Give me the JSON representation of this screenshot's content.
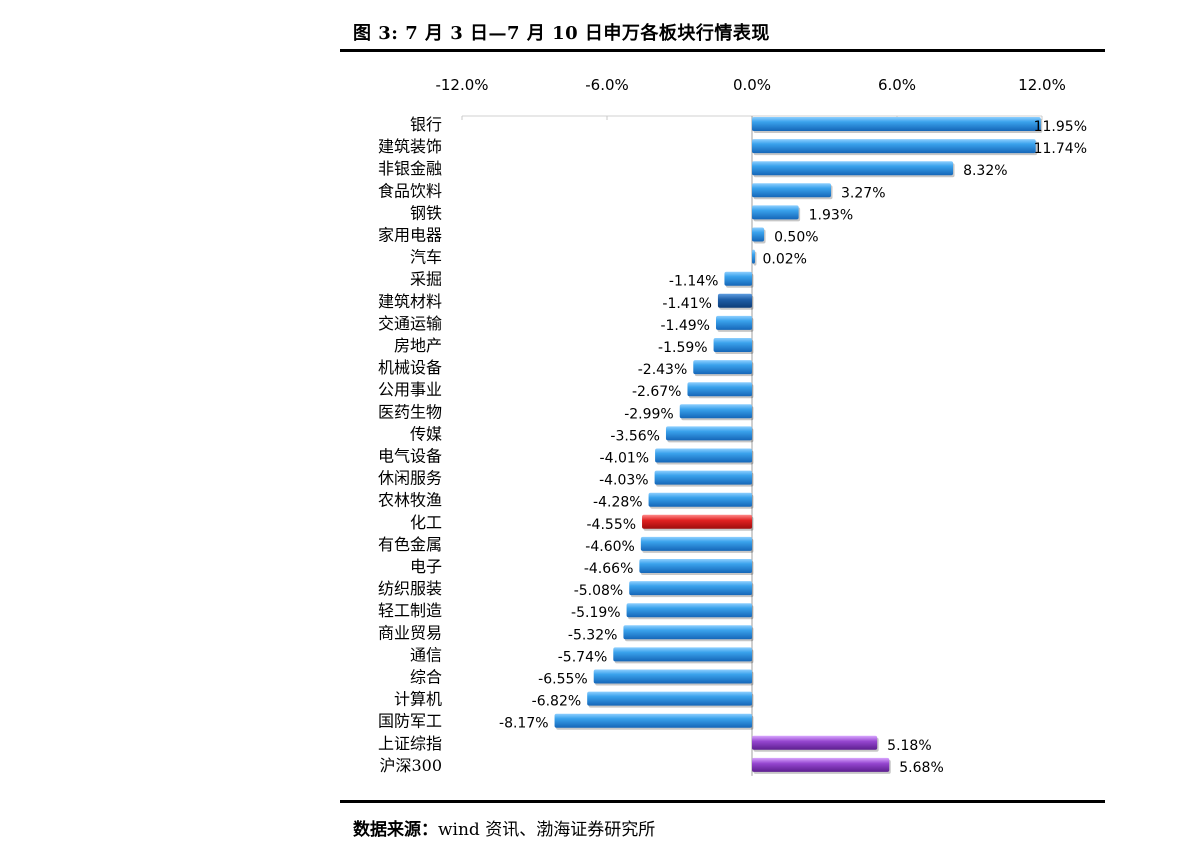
{
  "figure": {
    "title": "图 3:  7 月 3 日—7 月 10 日申万各板块行情表现",
    "source_label": "数据来源：",
    "source_text": "wind 资讯、渤海证券研究所"
  },
  "colors": {
    "default_bar": "#2a8fd6",
    "highlight_bar": "#d81e1e",
    "index_bar": "#8e3fc4",
    "dark_bar": "#1f5fa8"
  },
  "chart_data": {
    "type": "bar",
    "orientation": "horizontal",
    "title": "图 3:  7 月 3 日—7 月 10 日申万各板块行情表现",
    "xlabel": "",
    "ylabel": "",
    "xlim": [
      -12.0,
      12.0
    ],
    "xticks": [
      -12.0,
      -6.0,
      0.0,
      6.0,
      12.0
    ],
    "xtick_labels": [
      "-12.0%",
      "-6.0%",
      "0.0%",
      "6.0%",
      "12.0%"
    ],
    "axis_position": "top",
    "grid": false,
    "legend": "none",
    "categories": [
      "银行",
      "建筑装饰",
      "非银金融",
      "食品饮料",
      "钢铁",
      "家用电器",
      "汽车",
      "采掘",
      "建筑材料",
      "交通运输",
      "房地产",
      "机械设备",
      "公用事业",
      "医药生物",
      "传媒",
      "电气设备",
      "休闲服务",
      "农林牧渔",
      "化工",
      "有色金属",
      "电子",
      "纺织服装",
      "轻工制造",
      "商业贸易",
      "通信",
      "综合",
      "计算机",
      "国防军工",
      "上证综指",
      "沪深300"
    ],
    "values": [
      11.95,
      11.74,
      8.32,
      3.27,
      1.93,
      0.5,
      0.02,
      -1.14,
      -1.41,
      -1.49,
      -1.59,
      -2.43,
      -2.67,
      -2.99,
      -3.56,
      -4.01,
      -4.03,
      -4.28,
      -4.55,
      -4.6,
      -4.66,
      -5.08,
      -5.19,
      -5.32,
      -5.74,
      -6.55,
      -6.82,
      -8.17,
      5.18,
      5.68
    ],
    "value_labels": [
      "11.95%",
      "11.74%",
      "8.32%",
      "3.27%",
      "1.93%",
      "0.50%",
      "0.02%",
      "-1.14%",
      "-1.41%",
      "-1.49%",
      "-1.59%",
      "-2.43%",
      "-2.67%",
      "-2.99%",
      "-3.56%",
      "-4.01%",
      "-4.03%",
      "-4.28%",
      "-4.55%",
      "-4.60%",
      "-4.66%",
      "-5.08%",
      "-5.19%",
      "-5.32%",
      "-5.74%",
      "-6.55%",
      "-6.82%",
      "-8.17%",
      "5.18%",
      "5.68%"
    ],
    "bar_kinds": [
      "default",
      "default",
      "default",
      "default",
      "default",
      "default",
      "default",
      "default",
      "dark",
      "default",
      "default",
      "default",
      "default",
      "default",
      "default",
      "default",
      "default",
      "default",
      "highlight",
      "default",
      "default",
      "default",
      "default",
      "default",
      "default",
      "default",
      "default",
      "default",
      "index",
      "index"
    ]
  }
}
